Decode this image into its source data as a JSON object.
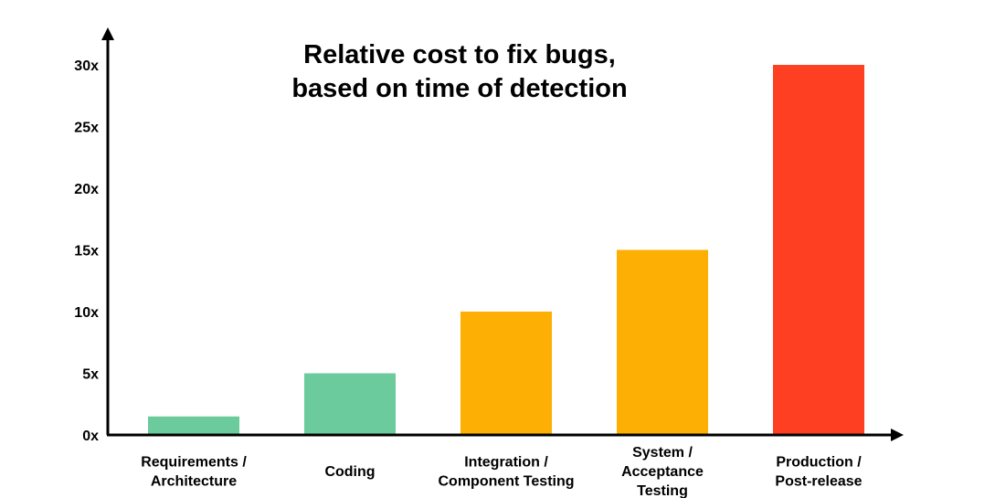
{
  "colors": {
    "green": "#6ccb9c",
    "orange": "#fdaf03",
    "red": "#ff3f22",
    "axis": "#000000"
  },
  "chart_data": {
    "type": "bar",
    "title_lines": [
      "Relative cost to fix bugs,",
      "based on time of detection"
    ],
    "xlabel": "",
    "ylabel": "",
    "ylim": [
      0,
      30
    ],
    "y_ticks": [
      {
        "value": 0,
        "label": "0x"
      },
      {
        "value": 5,
        "label": "5x"
      },
      {
        "value": 10,
        "label": "10x"
      },
      {
        "value": 15,
        "label": "15x"
      },
      {
        "value": 20,
        "label": "20x"
      },
      {
        "value": 25,
        "label": "25x"
      },
      {
        "value": 30,
        "label": "30x"
      }
    ],
    "grid": false,
    "legend": "none",
    "categories": [
      {
        "lines": [
          "Requirements /",
          "Architecture"
        ]
      },
      {
        "lines": [
          "Coding"
        ]
      },
      {
        "lines": [
          "Integration /",
          "Component Testing"
        ]
      },
      {
        "lines": [
          "System /",
          "Acceptance",
          "Testing"
        ]
      },
      {
        "lines": [
          "Production /",
          "Post-release"
        ]
      }
    ],
    "values": [
      1.5,
      5,
      10,
      15,
      30
    ],
    "bar_colors": [
      "green",
      "green",
      "orange",
      "orange",
      "red"
    ]
  }
}
